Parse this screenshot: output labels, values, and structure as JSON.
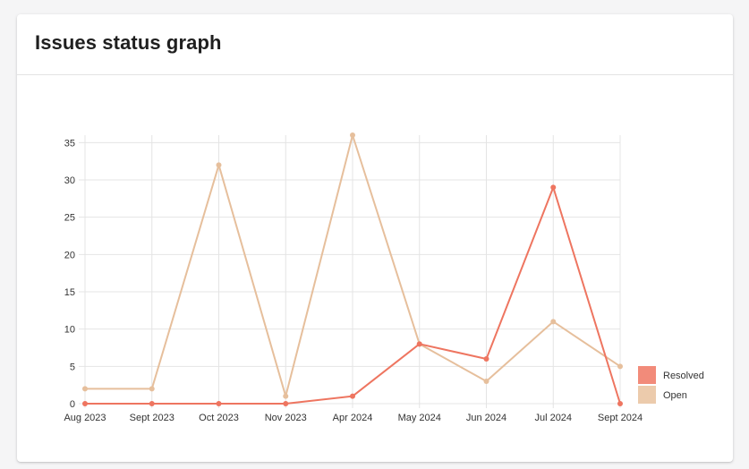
{
  "card": {
    "title": "Issues status graph"
  },
  "chart_data": {
    "type": "line",
    "title": "Issues status graph",
    "xlabel": "",
    "ylabel": "",
    "categories": [
      "Aug 2023",
      "Sept 2023",
      "Oct 2023",
      "Nov 2023",
      "Apr 2024",
      "May 2024",
      "Jun 2024",
      "Jul 2024",
      "Sept 2024"
    ],
    "yticks": [
      0,
      5,
      10,
      15,
      20,
      25,
      30,
      35
    ],
    "ylim": [
      0,
      36
    ],
    "grid": true,
    "legend_position": "bottom-right",
    "series": [
      {
        "name": "Resolved",
        "color": "#ee7560",
        "legend_color": "#f28b7a",
        "values": [
          0,
          0,
          0,
          0,
          1,
          8,
          6,
          29,
          0
        ]
      },
      {
        "name": "Open",
        "color": "#e6bf9c",
        "legend_color": "#eccbac",
        "values": [
          2,
          2,
          32,
          1,
          36,
          8,
          3,
          11,
          5
        ]
      }
    ]
  }
}
